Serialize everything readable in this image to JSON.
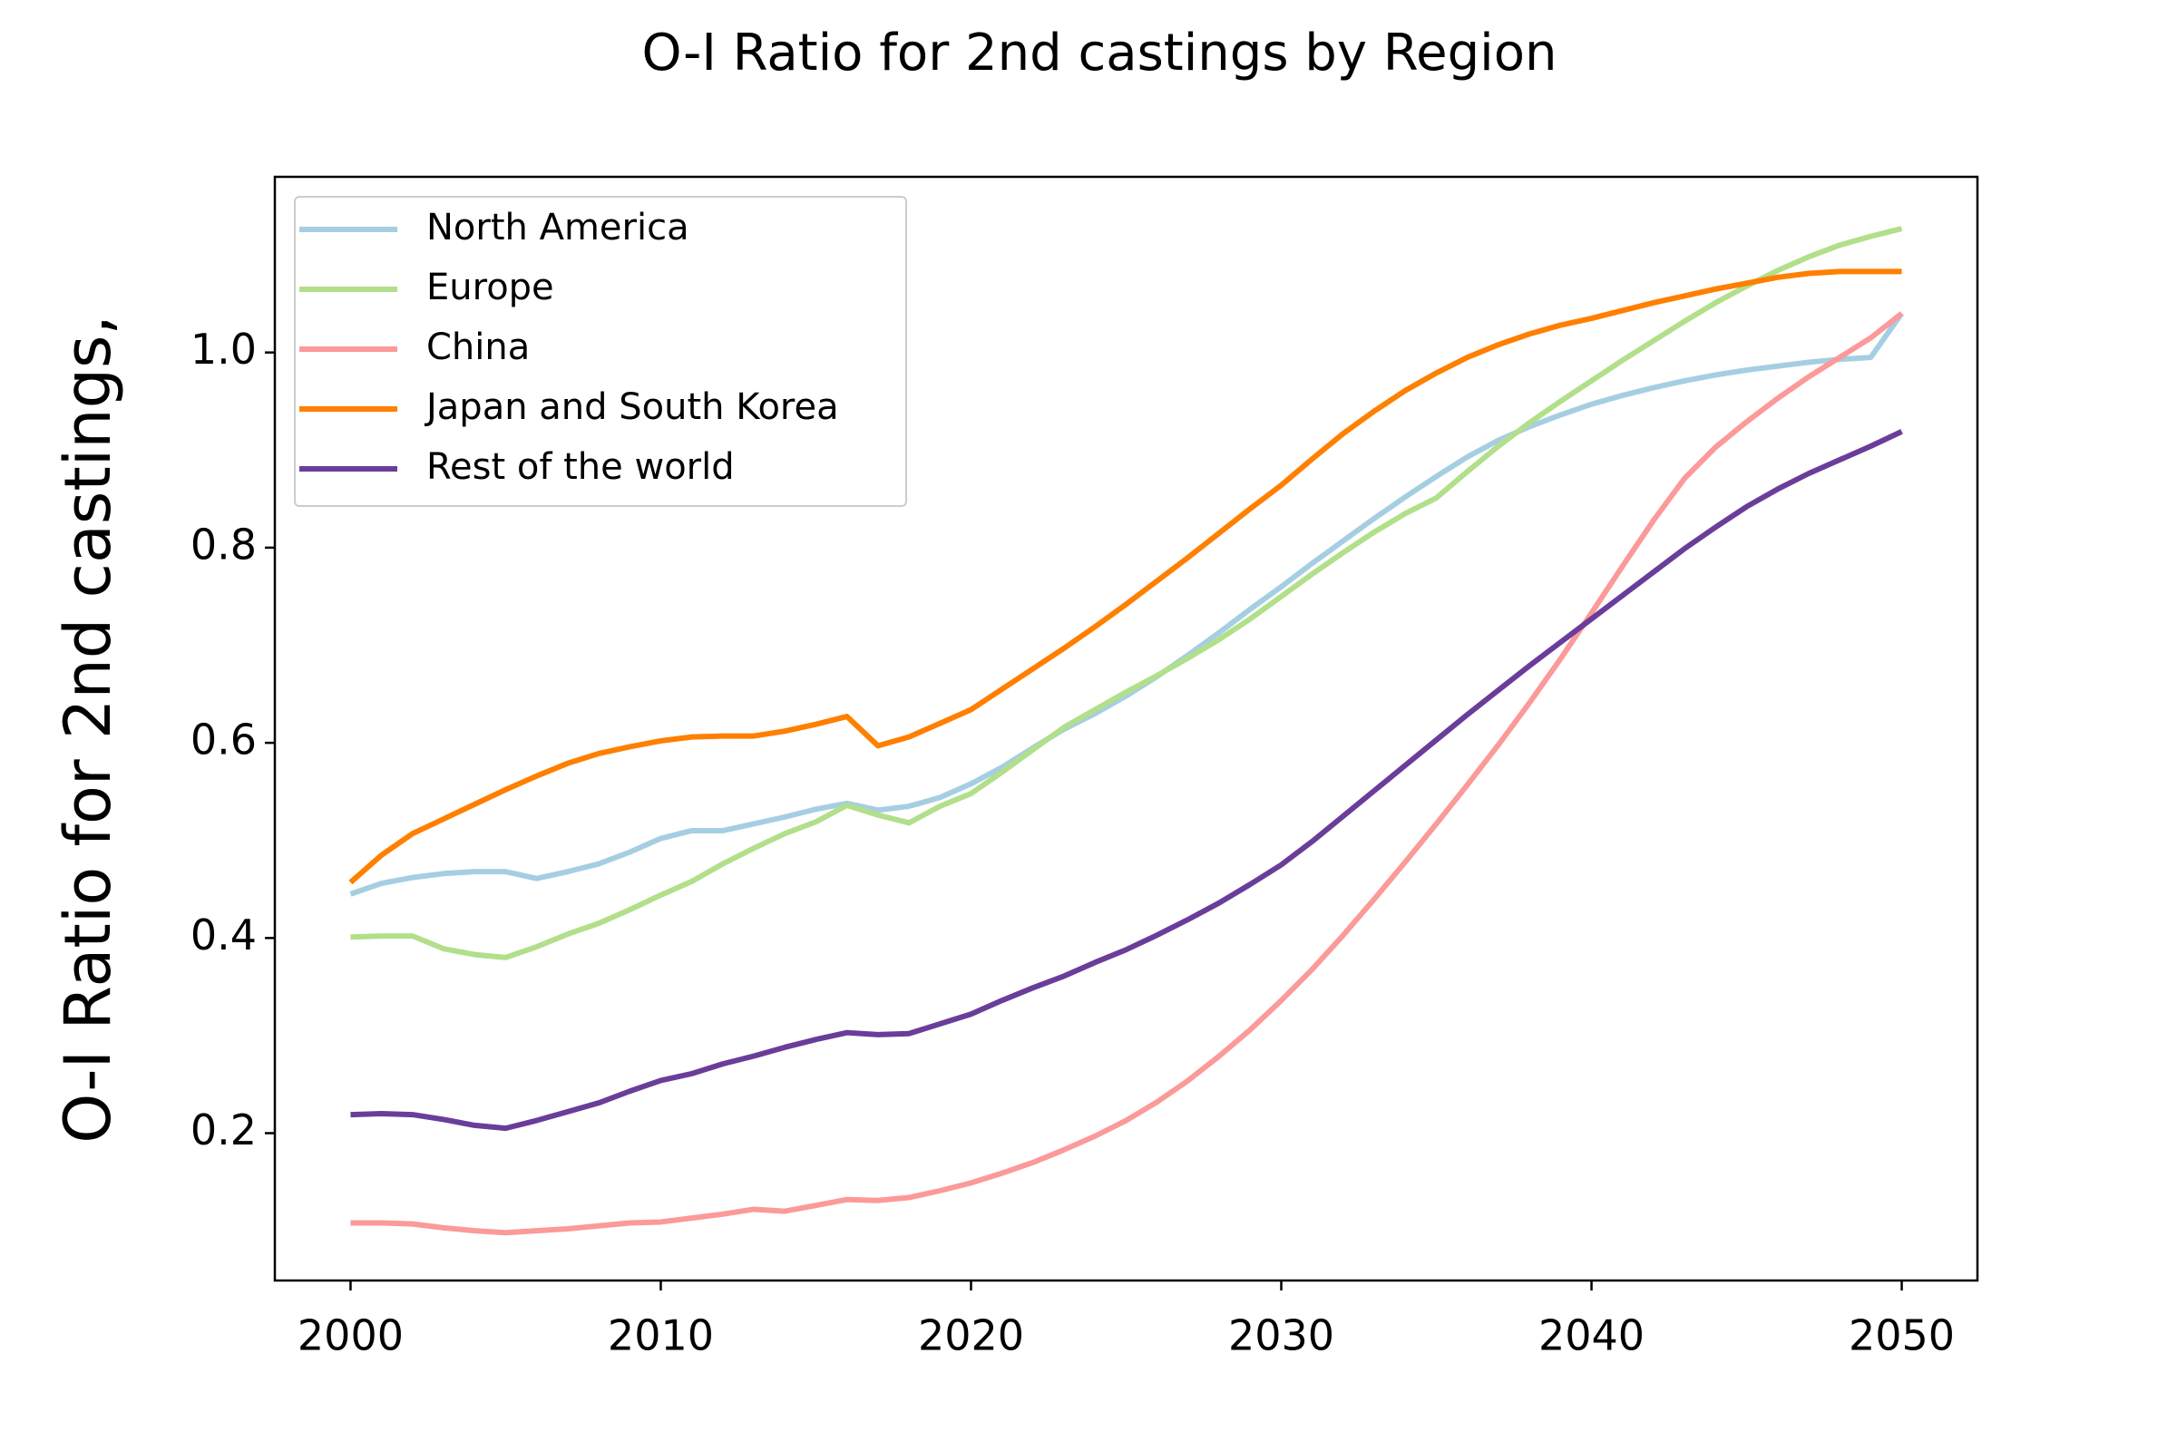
{
  "chart_data": {
    "type": "line",
    "title": "O-I Ratio for 2nd castings by Region",
    "ylabel": "O-I Ratio for 2nd castings,",
    "x": [
      2000,
      2001,
      2002,
      2003,
      2004,
      2005,
      2006,
      2007,
      2008,
      2009,
      2010,
      2011,
      2012,
      2013,
      2014,
      2015,
      2016,
      2017,
      2018,
      2019,
      2020,
      2021,
      2022,
      2023,
      2024,
      2025,
      2026,
      2027,
      2028,
      2029,
      2030,
      2031,
      2032,
      2033,
      2034,
      2035,
      2036,
      2037,
      2038,
      2039,
      2040,
      2041,
      2042,
      2043,
      2044,
      2045,
      2046,
      2047,
      2048,
      2049,
      2050
    ],
    "series": [
      {
        "name": "North America",
        "color": "#a6cee3",
        "values": [
          0.445,
          0.456,
          0.462,
          0.466,
          0.468,
          0.468,
          0.461,
          0.468,
          0.476,
          0.488,
          0.502,
          0.51,
          0.51,
          0.517,
          0.524,
          0.532,
          0.538,
          0.531,
          0.535,
          0.544,
          0.558,
          0.575,
          0.595,
          0.614,
          0.63,
          0.648,
          0.668,
          0.69,
          0.713,
          0.737,
          0.76,
          0.784,
          0.807,
          0.83,
          0.852,
          0.873,
          0.893,
          0.91,
          0.924,
          0.936,
          0.947,
          0.956,
          0.964,
          0.971,
          0.977,
          0.982,
          0.986,
          0.99,
          0.993,
          0.995,
          1.04
        ]
      },
      {
        "name": "Europe",
        "color": "#b2df8a",
        "values": [
          0.401,
          0.402,
          0.402,
          0.389,
          0.383,
          0.38,
          0.391,
          0.404,
          0.415,
          0.429,
          0.444,
          0.458,
          0.476,
          0.492,
          0.507,
          0.519,
          0.536,
          0.526,
          0.518,
          0.535,
          0.548,
          0.57,
          0.593,
          0.616,
          0.634,
          0.652,
          0.669,
          0.687,
          0.706,
          0.727,
          0.75,
          0.773,
          0.795,
          0.816,
          0.835,
          0.851,
          0.878,
          0.904,
          0.928,
          0.95,
          0.971,
          0.992,
          1.012,
          1.032,
          1.051,
          1.068,
          1.084,
          1.098,
          1.11,
          1.119,
          1.127
        ]
      },
      {
        "name": "China",
        "color": "#fb9a99",
        "values": [
          0.108,
          0.108,
          0.107,
          0.103,
          0.1,
          0.098,
          0.1,
          0.102,
          0.105,
          0.108,
          0.109,
          0.113,
          0.117,
          0.122,
          0.12,
          0.126,
          0.132,
          0.131,
          0.134,
          0.141,
          0.149,
          0.159,
          0.17,
          0.183,
          0.197,
          0.213,
          0.232,
          0.254,
          0.279,
          0.306,
          0.336,
          0.368,
          0.403,
          0.44,
          0.478,
          0.517,
          0.557,
          0.598,
          0.641,
          0.686,
          0.733,
          0.781,
          0.828,
          0.871,
          0.903,
          0.929,
          0.953,
          0.975,
          0.995,
          1.015,
          1.04
        ]
      },
      {
        "name": "Japan and South Korea",
        "color": "#ff7f00",
        "values": [
          0.457,
          0.485,
          0.507,
          0.522,
          0.537,
          0.552,
          0.566,
          0.579,
          0.589,
          0.596,
          0.602,
          0.606,
          0.607,
          0.607,
          0.612,
          0.619,
          0.627,
          0.597,
          0.606,
          0.62,
          0.634,
          0.655,
          0.676,
          0.697,
          0.719,
          0.742,
          0.766,
          0.79,
          0.815,
          0.84,
          0.864,
          0.891,
          0.917,
          0.94,
          0.961,
          0.979,
          0.995,
          1.008,
          1.019,
          1.028,
          1.035,
          1.043,
          1.051,
          1.058,
          1.065,
          1.071,
          1.077,
          1.081,
          1.083,
          1.083,
          1.083
        ]
      },
      {
        "name": "Rest of the world",
        "color": "#6a3d9a",
        "values": [
          0.219,
          0.22,
          0.219,
          0.214,
          0.208,
          0.205,
          0.213,
          0.222,
          0.231,
          0.243,
          0.254,
          0.261,
          0.271,
          0.279,
          0.288,
          0.296,
          0.303,
          0.301,
          0.302,
          0.312,
          0.322,
          0.336,
          0.349,
          0.361,
          0.375,
          0.388,
          0.403,
          0.419,
          0.436,
          0.455,
          0.475,
          0.499,
          0.525,
          0.551,
          0.577,
          0.603,
          0.629,
          0.654,
          0.679,
          0.703,
          0.727,
          0.751,
          0.775,
          0.799,
          0.821,
          0.842,
          0.86,
          0.876,
          0.89,
          0.904,
          0.919
        ]
      }
    ],
    "xlim": [
      1997.56,
      2052.44
    ],
    "ylim": [
      0.049,
      1.18
    ],
    "xticks": [
      2000,
      2010,
      2020,
      2030,
      2040,
      2050
    ],
    "yticks": [
      0.2,
      0.4,
      0.6,
      0.8,
      {
        "value": 1,
        "label": "1.0"
      }
    ],
    "grid": false,
    "legend": "upper left"
  }
}
